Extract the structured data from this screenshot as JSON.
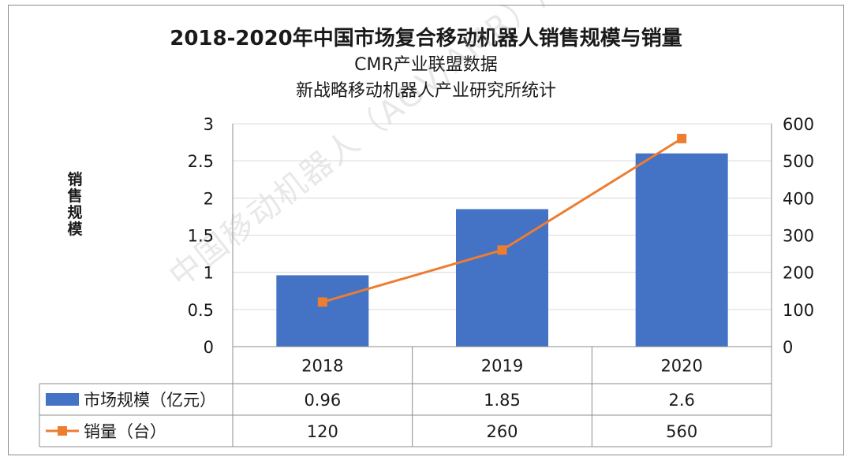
{
  "chart_data": {
    "type": "bar",
    "title": "2018-2020年中国市场复合移动机器人销售规模与销量",
    "subtitle_lines": [
      "CMR产业联盟数据",
      "新战略移动机器人产业研究所统计"
    ],
    "ylabel": "销售规模",
    "categories": [
      "2018",
      "2019",
      "2020"
    ],
    "series": [
      {
        "name": "市场规模（亿元）",
        "chart_type": "bar",
        "axis": "left",
        "values": [
          0.96,
          1.85,
          2.6
        ],
        "value_labels": [
          "0.96",
          "1.85",
          "2.6"
        ],
        "color": "#4472c4"
      },
      {
        "name": "销量（台）",
        "chart_type": "line",
        "axis": "right",
        "marker": "square",
        "values": [
          120,
          260,
          560
        ],
        "value_labels": [
          "120",
          "260",
          "560"
        ],
        "color": "#ed7d31"
      }
    ],
    "ylim": [
      0,
      3
    ],
    "yticks": [
      "0",
      "0.5",
      "1",
      "1.5",
      "2",
      "2.5",
      "3"
    ],
    "y2lim": [
      0,
      600
    ],
    "y2ticks": [
      "0",
      "100",
      "200",
      "300",
      "400",
      "500",
      "600"
    ],
    "grid": true,
    "legend": "data table below chart"
  },
  "watermark": "中国移动机器人（AGV/AMR）产业"
}
